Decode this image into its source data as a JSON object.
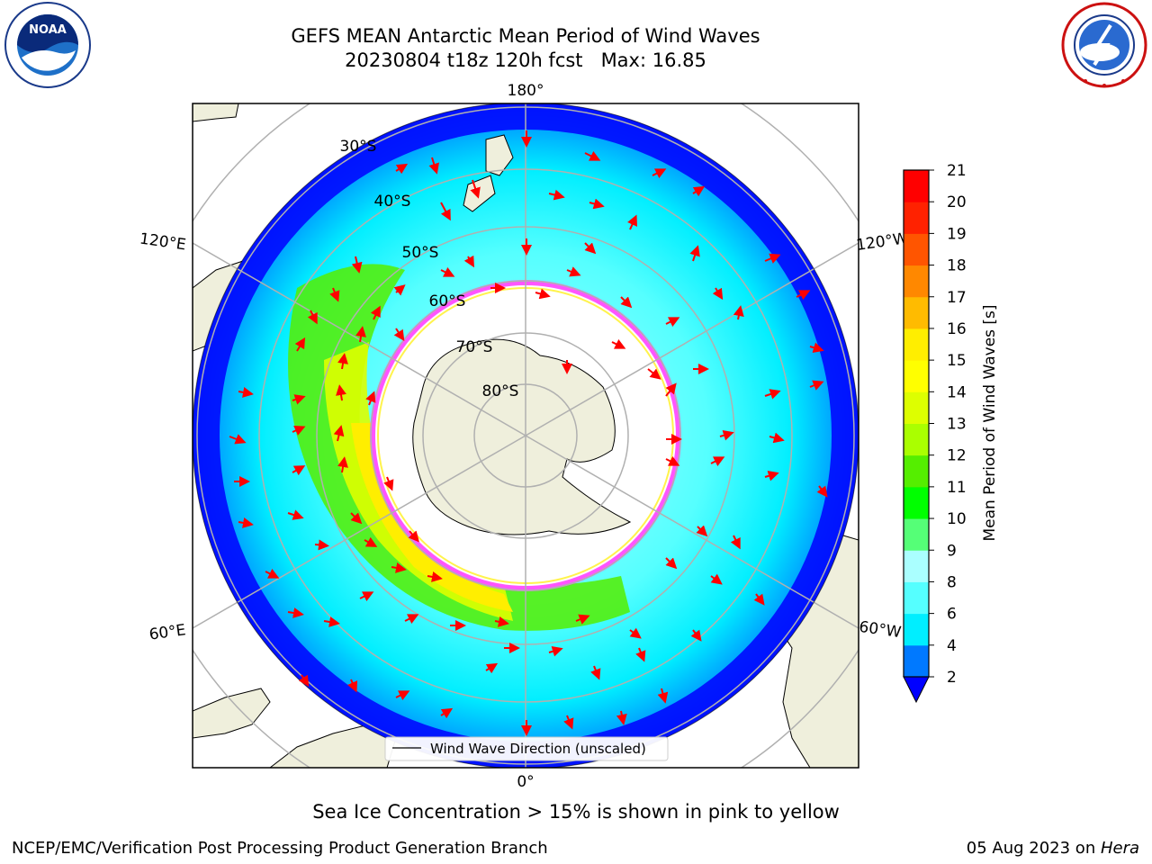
{
  "header": {
    "title_line1": "GEFS MEAN Antarctic Mean Period of Wind Waves",
    "title_line2": "20230804 t18z 120h fcst   Max: 16.85"
  },
  "logos": {
    "left": {
      "icon": "noaa-logo-icon",
      "text": "NOAA",
      "ring_text": "NATIONAL OCEANIC AND ATMOSPHERIC ADMINISTRATION · U.S. DEPARTMENT OF COMMERCE"
    },
    "right": {
      "icon": "nws-logo-icon",
      "ring_text": "NATIONAL WEATHER SERVICE"
    }
  },
  "map": {
    "projection": "south-polar-stereographic",
    "meridian_labels": {
      "top": "180°",
      "left_upper": "120°E",
      "right_upper": "120°W",
      "left_lower": "60°E",
      "right_lower": "60°W",
      "bottom": "0°"
    },
    "latitude_labels": [
      "30°S",
      "40°S",
      "50°S",
      "60°S",
      "70°S",
      "80°S"
    ],
    "legend_label": "Wind Wave Direction (unscaled)",
    "colors": {
      "land": "#efefdc",
      "ice_edge": "#ff55ff",
      "arrow": "#ff0000",
      "grid": "#b0b0b0"
    }
  },
  "colorbar": {
    "label": "Mean Period of Wind Waves [s]",
    "tick_labels": [
      "2",
      "4",
      "6",
      "8",
      "9",
      "10",
      "11",
      "12",
      "13",
      "14",
      "15",
      "16",
      "17",
      "18",
      "19",
      "20",
      "21"
    ],
    "colors": [
      "#0000ff",
      "#0079ff",
      "#00eeff",
      "#55ffff",
      "#aaffff",
      "#55ff77",
      "#00ff00",
      "#55ee00",
      "#aaff00",
      "#ddff00",
      "#ffff00",
      "#ffee00",
      "#ffbb00",
      "#ff8800",
      "#ff5500",
      "#ff2200",
      "#ff0000"
    ],
    "extend": "min"
  },
  "footnote": "Sea Ice Concentration > 15% is shown in pink to yellow",
  "footer": {
    "left": "NCEP/EMC/Verification Post Processing Product Generation Branch",
    "right_prefix": "05 Aug 2023 on ",
    "right_host": "Hera"
  }
}
